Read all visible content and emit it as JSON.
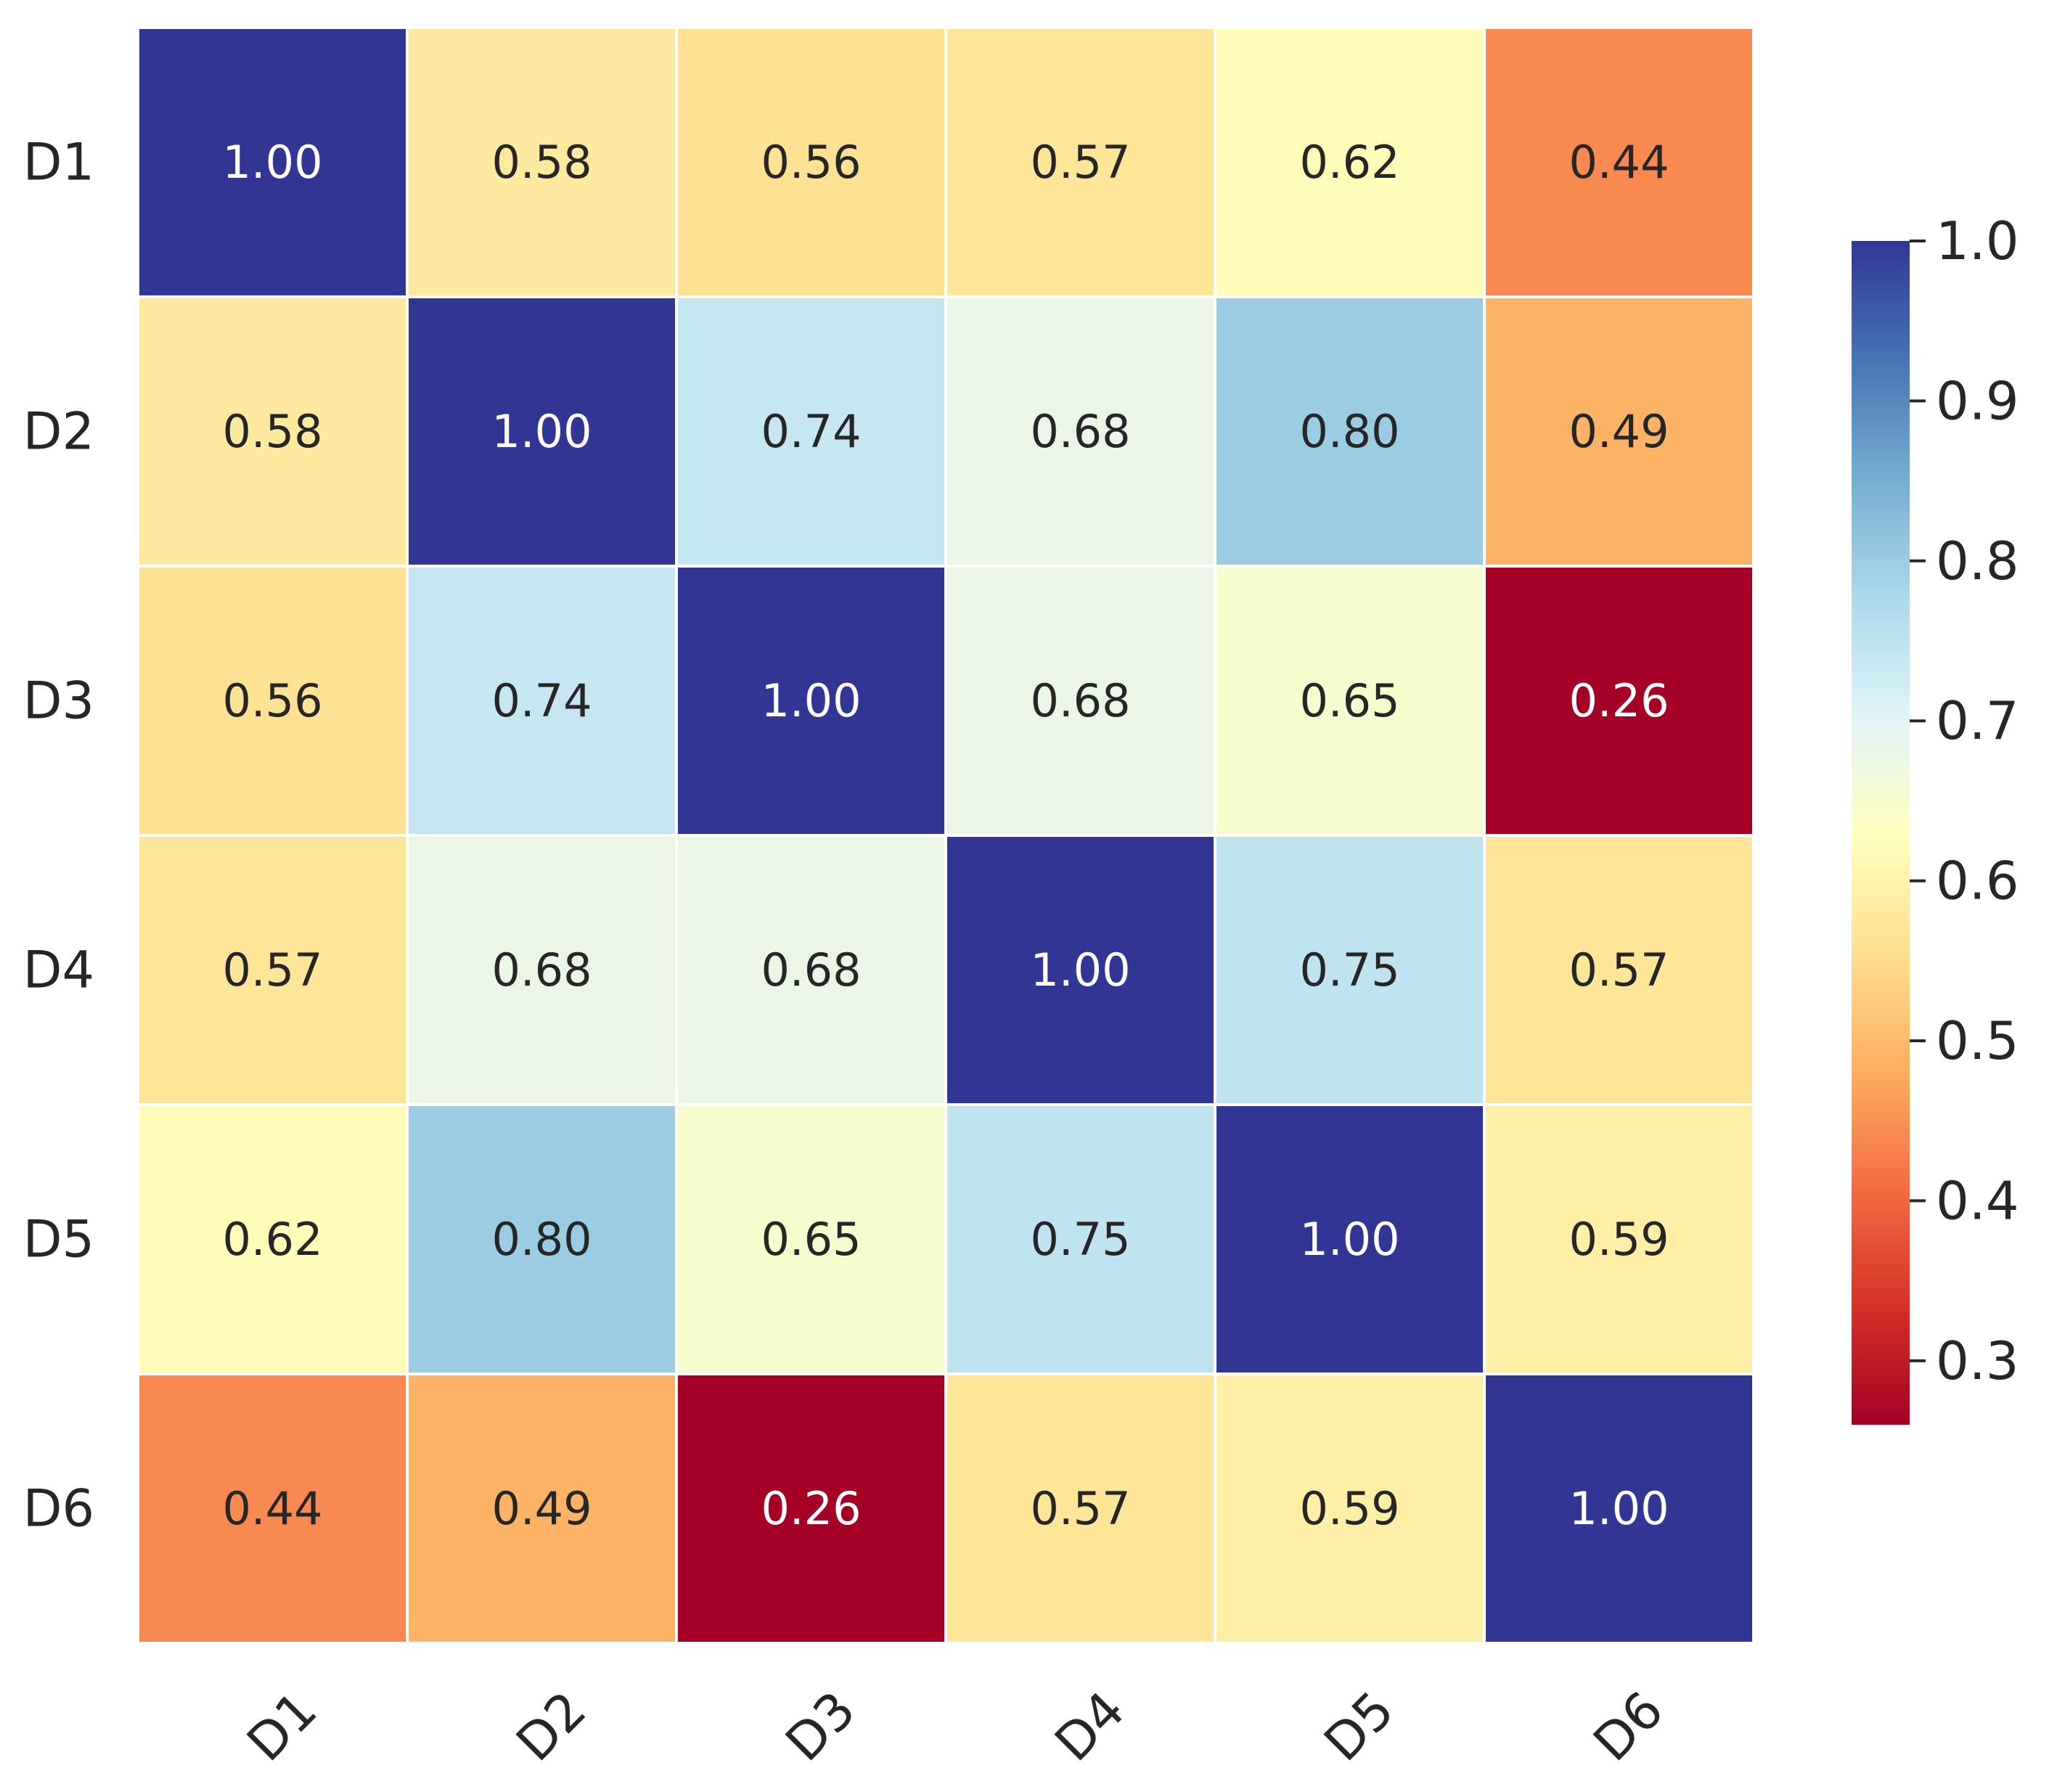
{
  "chart_data": {
    "type": "heatmap",
    "title": "",
    "xlabel": "",
    "ylabel": "",
    "x_categories": [
      "D1",
      "D2",
      "D3",
      "D4",
      "D5",
      "D6"
    ],
    "y_categories": [
      "D1",
      "D2",
      "D3",
      "D4",
      "D5",
      "D6"
    ],
    "values": [
      [
        1.0,
        0.58,
        0.56,
        0.57,
        0.62,
        0.44
      ],
      [
        0.58,
        1.0,
        0.74,
        0.68,
        0.8,
        0.49
      ],
      [
        0.56,
        0.74,
        1.0,
        0.68,
        0.65,
        0.26
      ],
      [
        0.57,
        0.68,
        0.68,
        1.0,
        0.75,
        0.57
      ],
      [
        0.62,
        0.8,
        0.65,
        0.75,
        1.0,
        0.59
      ],
      [
        0.44,
        0.49,
        0.26,
        0.57,
        0.59,
        1.0
      ]
    ],
    "value_format": "0.00",
    "colormap": "RdYlBu",
    "vmin": 0.26,
    "vmax": 1.0,
    "colorbar_ticks": [
      "0.3",
      "0.4",
      "0.5",
      "0.6",
      "0.7",
      "0.8",
      "0.9",
      "1.0"
    ],
    "colorbar_tick_values": [
      0.3,
      0.4,
      0.5,
      0.6,
      0.7,
      0.8,
      0.9,
      1.0
    ],
    "colorbar_position": "right",
    "x_tick_rotation": 45,
    "colors": {
      "cell_border": "#ffffff",
      "text_dark": "#262626",
      "text_light": "#ffffff",
      "stops": [
        "#a50026",
        "#d73027",
        "#f46d43",
        "#fdae61",
        "#fee090",
        "#ffffbf",
        "#e0f3f8",
        "#abd9e9",
        "#74add1",
        "#4575b4",
        "#313695"
      ]
    }
  }
}
